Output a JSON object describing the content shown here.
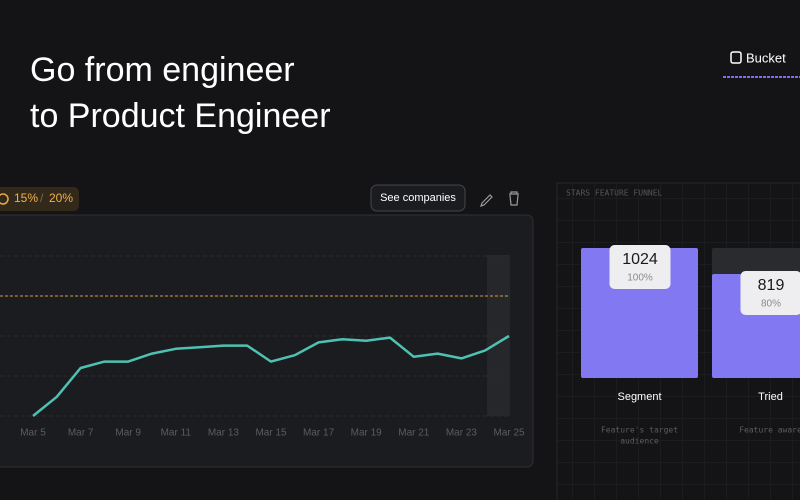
{
  "headline": [
    "Go from engineer",
    "to Product Engineer"
  ],
  "nav": {
    "brand": "Bucket"
  },
  "toolbar": {
    "targets": [
      "15%",
      "20%"
    ],
    "separator": "/",
    "button": "See companies"
  },
  "line_chart": {
    "type": "line",
    "color": "#4fc1b3",
    "x": [
      "Mar 5",
      null,
      "Mar 7",
      null,
      "Mar 9",
      null,
      "Mar 11",
      null,
      "Mar 13",
      null,
      "Mar 15",
      null,
      "Mar 17",
      null,
      "Mar 19",
      null,
      "Mar 21",
      null,
      "Mar 23",
      null,
      "Mar 25"
    ],
    "values": [
      0,
      12,
      30,
      34,
      34,
      39,
      42,
      43,
      44,
      44,
      34,
      38,
      46,
      48,
      47,
      49,
      37,
      39,
      36,
      41,
      50
    ],
    "ylim": [
      0,
      100
    ],
    "yticks": [
      0,
      25,
      50,
      75,
      100
    ],
    "target": 75,
    "grid": true
  },
  "funnel": {
    "title": "STARS FEATURE FUNNEL",
    "color": "#8279f2",
    "steps": [
      {
        "name": "Segment",
        "count": 1024,
        "percent": "100%",
        "description": [
          "Feature's target",
          "audience"
        ]
      },
      {
        "name": "Tried",
        "count": 819,
        "percent": "80%",
        "description": [
          "Feature aware"
        ]
      }
    ]
  }
}
